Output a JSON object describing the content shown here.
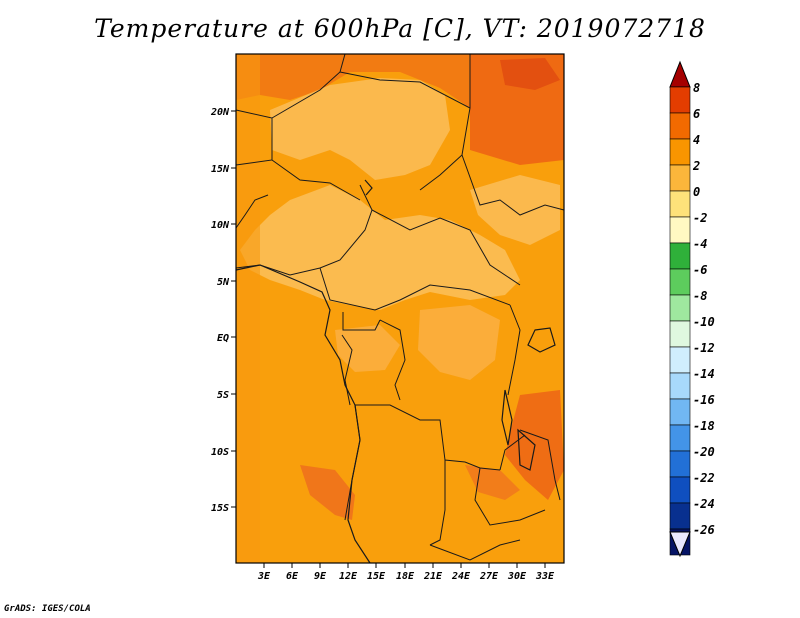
{
  "title": "Temperature at 600hPa [C], VT: 2019072718",
  "credit": "GrADS: IGES/COLA",
  "map": {
    "lat_labels": [
      "20N",
      "15N",
      "10N",
      "5N",
      "EQ",
      "5S",
      "10S",
      "15S"
    ],
    "lon_labels": [
      "3E",
      "6E",
      "9E",
      "12E",
      "15E",
      "18E",
      "21E",
      "24E",
      "27E",
      "30E",
      "33E"
    ]
  },
  "colorbar": {
    "labels": [
      "8",
      "6",
      "4",
      "2",
      "0",
      "-2",
      "-4",
      "-6",
      "-8",
      "-10",
      "-12",
      "-14",
      "-16",
      "-18",
      "-20",
      "-22",
      "-24",
      "-26"
    ],
    "colors": [
      "#a50000",
      "#e33d00",
      "#f26a00",
      "#f99500",
      "#fbb63b",
      "#fde27a",
      "#fff9c2",
      "#2fb03a",
      "#5dcc5d",
      "#9fe89f",
      "#dff8df",
      "#d0eefd",
      "#a8d9fb",
      "#71b7f3",
      "#4394e8",
      "#2270d6",
      "#0f4fbf",
      "#08308f",
      "#061466",
      "#e9e8ff"
    ]
  }
}
